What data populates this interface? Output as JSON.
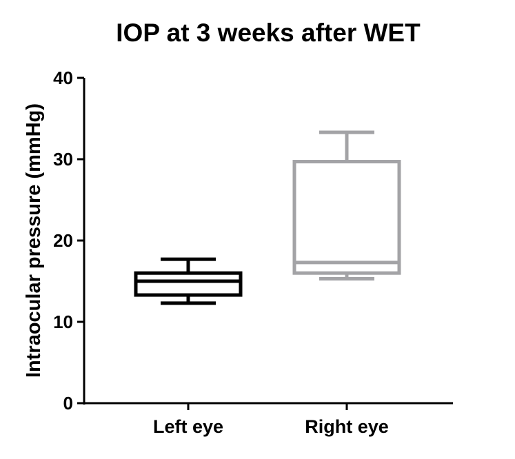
{
  "chart_data": {
    "type": "box",
    "title": "IOP at 3 weeks after WET",
    "xlabel": "",
    "ylabel": "Intraocular pressure (mmHg)",
    "ylim": [
      0,
      40
    ],
    "yticks": [
      0,
      10,
      20,
      30,
      40
    ],
    "grid": false,
    "legend": "none",
    "categories": [
      "Left eye",
      "Right eye"
    ],
    "series": [
      {
        "category": "Left eye",
        "color": "#000000",
        "whisker_low": 12.3,
        "q1": 13.3,
        "median": 15.0,
        "q3": 16.0,
        "whisker_high": 17.7
      },
      {
        "category": "Right eye",
        "color": "#a3a3a6",
        "whisker_low": 15.3,
        "q1": 16.0,
        "median": 17.3,
        "q3": 29.7,
        "whisker_high": 33.3
      }
    ]
  }
}
